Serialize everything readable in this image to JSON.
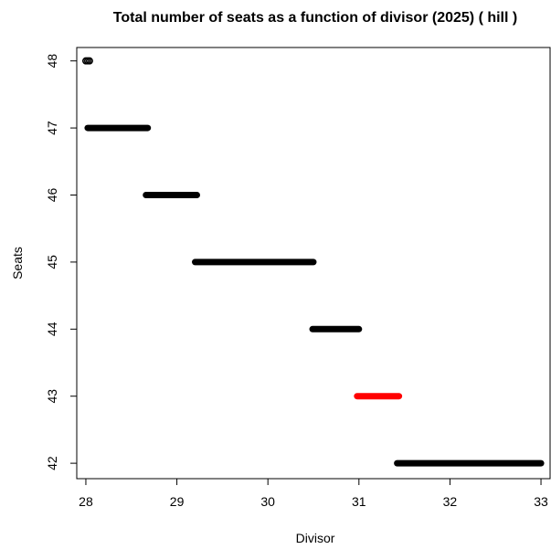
{
  "chart_data": {
    "type": "line",
    "title": "Total number of seats as a function of divisor (2025)  ( hill )",
    "xlabel": "Divisor",
    "ylabel": "Seats",
    "xlim": [
      27.9,
      33.1
    ],
    "ylim": [
      41.77,
      48.2
    ],
    "x_ticks": [
      28,
      29,
      30,
      31,
      32,
      33
    ],
    "y_ticks": [
      42,
      43,
      44,
      45,
      46,
      47,
      48
    ],
    "grid": false,
    "segments": [
      {
        "seats": 48,
        "x_start": 28.0,
        "x_end": 28.04,
        "color": "#000000",
        "style": "open-circles"
      },
      {
        "seats": 47,
        "x_start": 28.02,
        "x_end": 28.68,
        "color": "#000000",
        "style": "thick"
      },
      {
        "seats": 46,
        "x_start": 28.66,
        "x_end": 29.22,
        "color": "#000000",
        "style": "thick"
      },
      {
        "seats": 45,
        "x_start": 29.2,
        "x_end": 30.5,
        "color": "#000000",
        "style": "thick"
      },
      {
        "seats": 44,
        "x_start": 30.49,
        "x_end": 31.0,
        "color": "#000000",
        "style": "thick"
      },
      {
        "seats": 43,
        "x_start": 30.98,
        "x_end": 31.44,
        "color": "#ff0000",
        "style": "thick"
      },
      {
        "seats": 42,
        "x_start": 31.42,
        "x_end": 33.0,
        "color": "#000000",
        "style": "thick"
      }
    ]
  }
}
